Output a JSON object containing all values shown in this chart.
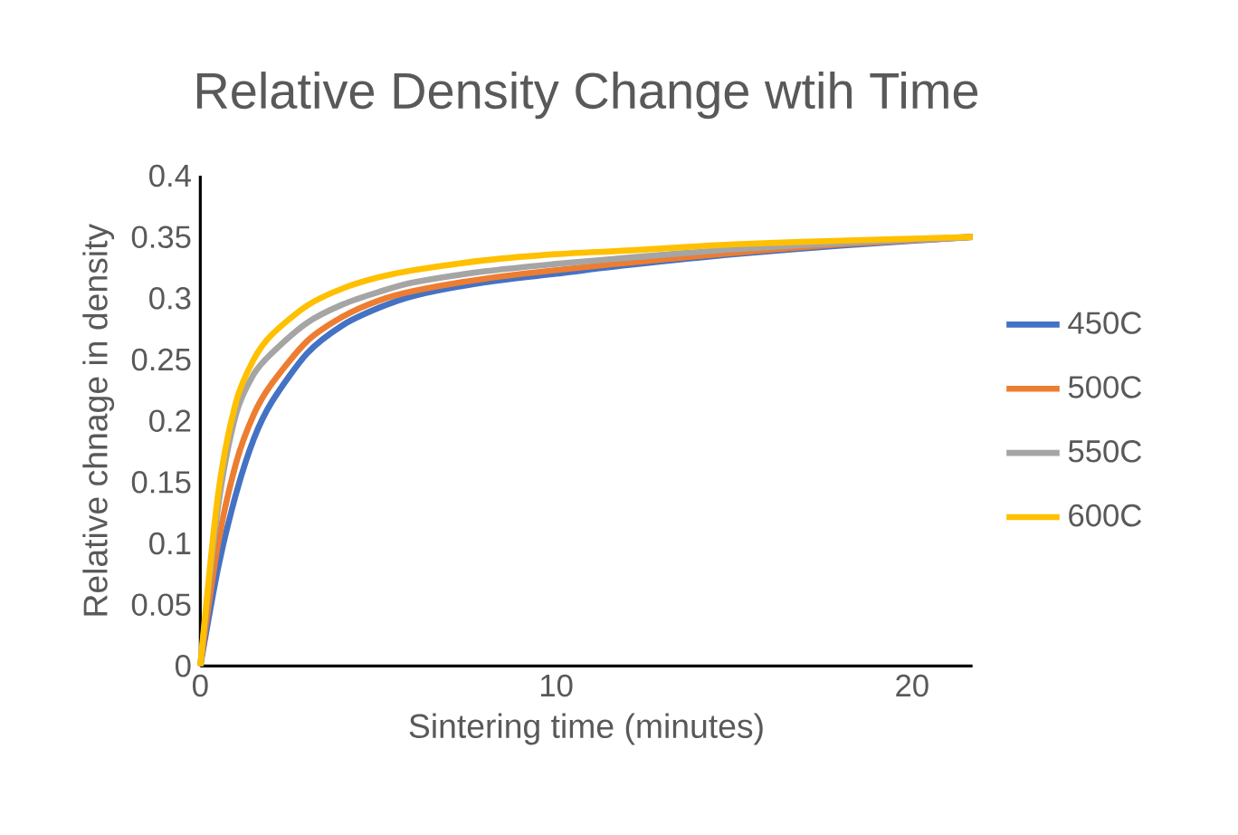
{
  "chart_data": {
    "type": "line",
    "title": "Relative Density Change wtih Time",
    "xlabel": "Sintering time (minutes)",
    "ylabel": "Relative chnage in density",
    "x": [
      0,
      0.5,
      1,
      1.5,
      2,
      3,
      4,
      5,
      6,
      8,
      10,
      12,
      15,
      18,
      21.7
    ],
    "xlim": [
      0,
      21.7
    ],
    "xticks": [
      0,
      10,
      20
    ],
    "ylim": [
      0,
      0.4
    ],
    "yticks": [
      0,
      0.05,
      0.1,
      0.15,
      0.2,
      0.25,
      0.3,
      0.35,
      0.4
    ],
    "grid": false,
    "legend": "right",
    "marker": "none",
    "line_style": "solid",
    "series": [
      {
        "name": "450C",
        "color": "#4472c4",
        "values": [
          0,
          0.08,
          0.14,
          0.185,
          0.215,
          0.255,
          0.278,
          0.292,
          0.302,
          0.313,
          0.32,
          0.327,
          0.336,
          0.343,
          0.35
        ]
      },
      {
        "name": "500C",
        "color": "#ed7d31",
        "values": [
          0,
          0.1,
          0.165,
          0.205,
          0.23,
          0.265,
          0.285,
          0.298,
          0.306,
          0.316,
          0.323,
          0.329,
          0.337,
          0.344,
          0.35
        ]
      },
      {
        "name": "550C",
        "color": "#a5a5a5",
        "values": [
          0,
          0.13,
          0.205,
          0.238,
          0.255,
          0.28,
          0.295,
          0.305,
          0.313,
          0.322,
          0.328,
          0.333,
          0.34,
          0.345,
          0.35
        ]
      },
      {
        "name": "600C",
        "color": "#ffc000",
        "values": [
          0,
          0.14,
          0.215,
          0.25,
          0.27,
          0.294,
          0.308,
          0.317,
          0.323,
          0.331,
          0.336,
          0.339,
          0.344,
          0.347,
          0.35
        ]
      }
    ]
  }
}
